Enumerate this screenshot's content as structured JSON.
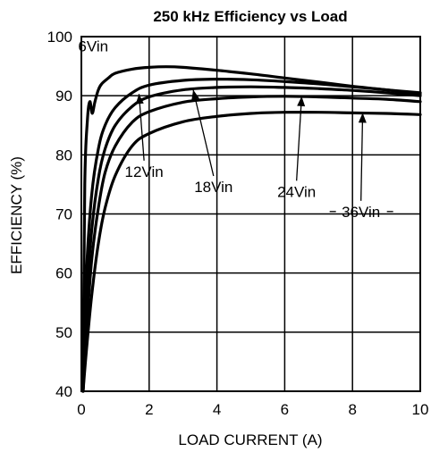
{
  "chart_data": {
    "type": "line",
    "title": "250 kHz Efficiency vs Load",
    "xlabel": "LOAD CURRENT (A)",
    "ylabel": "EFFICIENCY (%)",
    "xlim": [
      0,
      10
    ],
    "ylim": [
      40,
      100
    ],
    "x_ticks": [
      "0",
      "2",
      "4",
      "6",
      "8",
      "10"
    ],
    "y_ticks": [
      "40",
      "50",
      "60",
      "70",
      "80",
      "90",
      "100"
    ],
    "grid": true,
    "series": [
      {
        "name": "6Vin",
        "x": [
          0.05,
          0.1,
          0.18,
          0.25,
          0.32,
          0.4,
          0.5,
          0.6,
          0.8,
          1.0,
          1.5,
          2.0,
          2.5,
          3.0,
          4.0,
          5.0,
          6.0,
          7.0,
          8.0,
          9.0,
          10.0
        ],
        "y": [
          40,
          75,
          86,
          89,
          87,
          89,
          91,
          92,
          93,
          93.8,
          94.5,
          94.8,
          94.9,
          94.8,
          94.3,
          93.7,
          93.0,
          92.3,
          91.6,
          91.0,
          90.3
        ]
      },
      {
        "name": "12Vin",
        "x": [
          0.05,
          0.15,
          0.3,
          0.5,
          0.7,
          1.0,
          1.5,
          2.0,
          3.0,
          4.0,
          5.0,
          6.0,
          7.0,
          8.0,
          9.0,
          10.0
        ],
        "y": [
          40,
          60,
          73,
          81,
          85,
          88,
          90.5,
          91.8,
          92.6,
          92.8,
          92.7,
          92.4,
          92.0,
          91.5,
          91.0,
          90.5
        ]
      },
      {
        "name": "18Vin",
        "x": [
          0.05,
          0.15,
          0.3,
          0.5,
          0.7,
          1.0,
          1.5,
          2.0,
          3.0,
          4.0,
          5.0,
          6.0,
          7.0,
          8.0,
          9.0,
          10.0
        ],
        "y": [
          40,
          55,
          67,
          76,
          81,
          85,
          88.2,
          89.8,
          91.0,
          91.4,
          91.5,
          91.4,
          91.2,
          90.9,
          90.5,
          90.0
        ]
      },
      {
        "name": "24Vin",
        "x": [
          0.05,
          0.15,
          0.3,
          0.5,
          0.7,
          1.0,
          1.5,
          2.0,
          3.0,
          4.0,
          5.0,
          6.0,
          7.0,
          8.0,
          9.0,
          10.0
        ],
        "y": [
          40,
          50,
          62,
          71,
          77,
          81.5,
          85.5,
          87.3,
          88.9,
          89.5,
          89.8,
          89.9,
          89.8,
          89.6,
          89.4,
          89.0
        ]
      },
      {
        "name": "36Vin",
        "x": [
          0.05,
          0.15,
          0.3,
          0.5,
          0.7,
          1.0,
          1.5,
          2.0,
          3.0,
          4.0,
          5.0,
          6.0,
          7.0,
          8.0,
          9.0,
          10.0
        ],
        "y": [
          40,
          47,
          56,
          65,
          71,
          76.5,
          81.5,
          83.6,
          85.6,
          86.5,
          87.0,
          87.2,
          87.2,
          87.1,
          87.0,
          86.8
        ]
      }
    ],
    "annotations": [
      {
        "text": "6Vin",
        "x": 0.35,
        "y": 97.5,
        "arrow": false
      },
      {
        "text": "12Vin",
        "x": 1.85,
        "y": 76.3,
        "arrow": true,
        "arrow_to": [
          1.7,
          90.3
        ]
      },
      {
        "text": "18Vin",
        "x": 3.9,
        "y": 73.7,
        "arrow": true,
        "arrow_to": [
          3.3,
          91.0
        ]
      },
      {
        "text": "24Vin",
        "x": 6.35,
        "y": 72.9,
        "arrow": true,
        "arrow_to": [
          6.5,
          89.9
        ]
      },
      {
        "text": "36Vin",
        "x": 8.25,
        "y": 69.5,
        "arrow": true,
        "arrow_to": [
          8.3,
          87.1
        ]
      }
    ]
  }
}
